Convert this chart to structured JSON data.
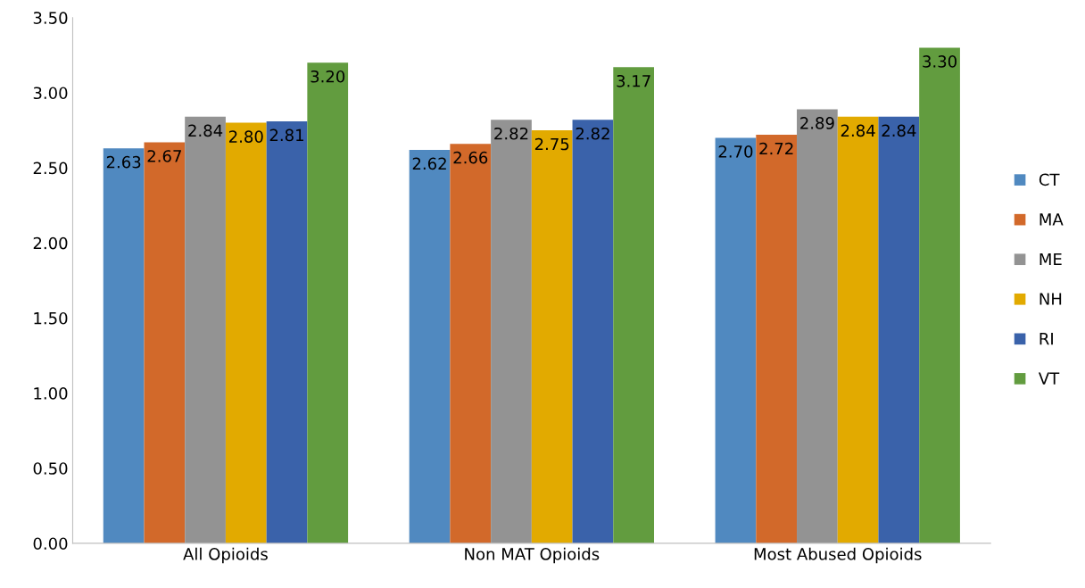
{
  "chart_data": {
    "type": "bar",
    "categories": [
      "All Opioids",
      "Non MAT Opioids",
      "Most Abused Opioids"
    ],
    "series": [
      {
        "name": "CT",
        "color": "#5089c0",
        "values": [
          2.63,
          2.62,
          2.7
        ],
        "value_labels": [
          "2.63",
          "2.62",
          "2.70"
        ]
      },
      {
        "name": "MA",
        "color": "#d2692a",
        "values": [
          2.67,
          2.66,
          2.72
        ],
        "value_labels": [
          "2.67",
          "2.66",
          "2.72"
        ]
      },
      {
        "name": "ME",
        "color": "#939393",
        "values": [
          2.84,
          2.82,
          2.89
        ],
        "value_labels": [
          "2.84",
          "2.82",
          "2.89"
        ]
      },
      {
        "name": "NH",
        "color": "#e2aa00",
        "values": [
          2.8,
          2.75,
          2.84
        ],
        "value_labels": [
          "2.80",
          "2.75",
          "2.84"
        ]
      },
      {
        "name": "RI",
        "color": "#3a62aa",
        "values": [
          2.81,
          2.82,
          2.84
        ],
        "value_labels": [
          "2.81",
          "2.82",
          "2.84"
        ]
      },
      {
        "name": "VT",
        "color": "#629c3f",
        "values": [
          3.2,
          3.17,
          3.3
        ],
        "value_labels": [
          "3.20",
          "3.17",
          "3.30"
        ]
      }
    ],
    "ylim": [
      0,
      3.5
    ],
    "yticks": [
      {
        "value": 0,
        "label": "0.00"
      },
      {
        "value": 0.5,
        "label": "0.50"
      },
      {
        "value": 1,
        "label": "1.00"
      },
      {
        "value": 1.5,
        "label": "1.50"
      },
      {
        "value": 2,
        "label": "2.00"
      },
      {
        "value": 2.5,
        "label": "2.50"
      },
      {
        "value": 3,
        "label": "3.00"
      },
      {
        "value": 3.5,
        "label": "3.50"
      }
    ],
    "grid": false,
    "legend": "right"
  }
}
